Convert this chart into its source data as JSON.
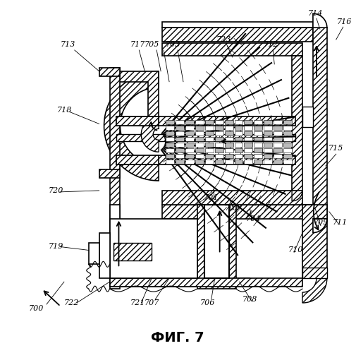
{
  "title": "ФИГ. 7",
  "title_fontsize": 14,
  "title_fontweight": "bold",
  "bg_color": "#ffffff"
}
